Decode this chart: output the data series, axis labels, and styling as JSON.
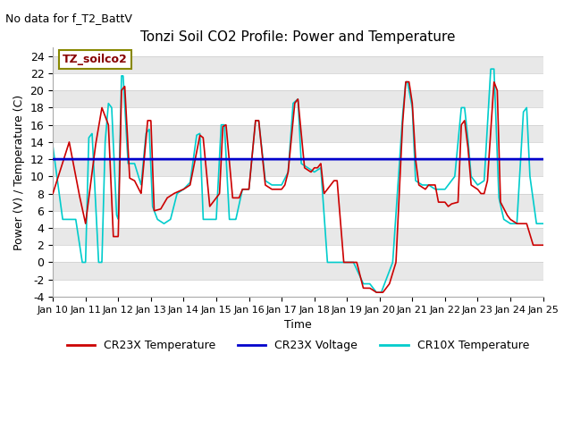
{
  "title": "Tonzi Soil CO2 Profile: Power and Temperature",
  "subtitle": "No data for f_T2_BattV",
  "xlabel": "Time",
  "ylabel": "Power (V) / Temperature (C)",
  "ylim": [
    -4,
    25
  ],
  "yticks": [
    -4,
    -2,
    0,
    2,
    4,
    6,
    8,
    10,
    12,
    14,
    16,
    18,
    20,
    22,
    24
  ],
  "xtick_labels": [
    "Jan 10",
    "Jan 11",
    "Jan 12",
    "Jan 13",
    "Jan 14",
    "Jan 15",
    "Jan 16",
    "Jan 17",
    "Jan 18",
    "Jan 19",
    "Jan 20",
    "Jan 21",
    "Jan 22",
    "Jan 23",
    "Jan 24",
    "Jan 25"
  ],
  "legend_label_cr23x_temp": "CR23X Temperature",
  "legend_label_cr23x_volt": "CR23X Voltage",
  "legend_label_cr10x_temp": "CR10X Temperature",
  "annotation_label": "TZ_soilco2",
  "cr23x_temp_color": "#cc0000",
  "cr23x_volt_color": "#0000cc",
  "cr10x_temp_color": "#00cccc",
  "voltage_value": 12.0,
  "background_color": "#ffffff"
}
